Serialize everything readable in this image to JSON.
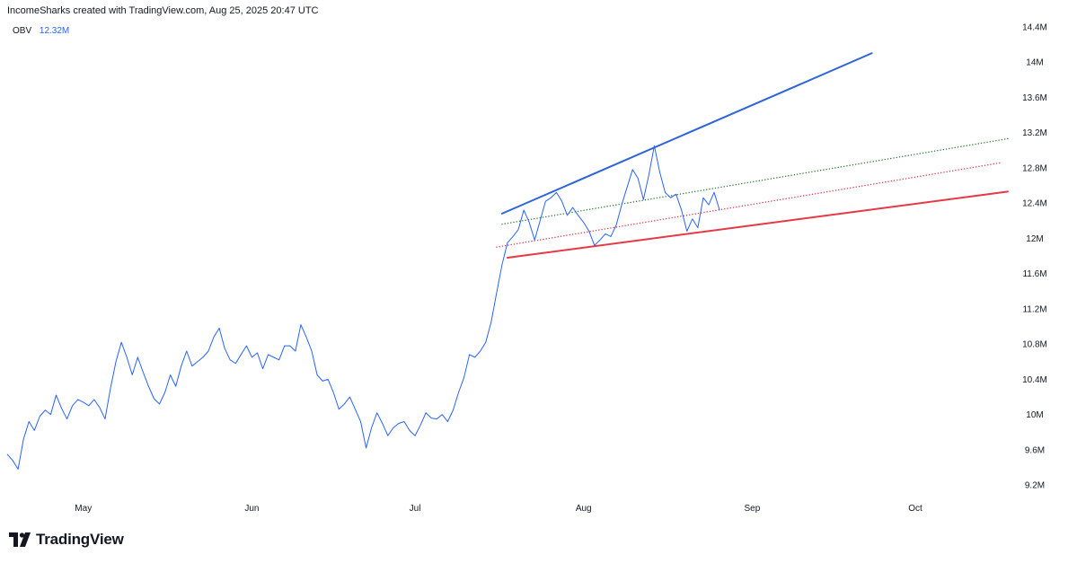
{
  "header": {
    "text": "IncomeSharks created with TradingView.com, Aug 25, 2025 20:47 UTC"
  },
  "legend": {
    "name": "OBV",
    "value": "12.32M"
  },
  "brand": {
    "name": "TradingView",
    "logo_icon": "tradingview-logo-icon"
  },
  "chart_data": {
    "type": "line",
    "title": "",
    "y_axis": {
      "side": "right",
      "min": 9.1,
      "max": 14.5,
      "ticks": [
        {
          "value": 9.2,
          "label": "9.2M"
        },
        {
          "value": 9.6,
          "label": "9.6M"
        },
        {
          "value": 10.0,
          "label": "10M"
        },
        {
          "value": 10.4,
          "label": "10.4M"
        },
        {
          "value": 10.8,
          "label": "10.8M"
        },
        {
          "value": 11.2,
          "label": "11.2M"
        },
        {
          "value": 11.6,
          "label": "11.6M"
        },
        {
          "value": 12.0,
          "label": "12M"
        },
        {
          "value": 12.4,
          "label": "12.4M"
        },
        {
          "value": 12.8,
          "label": "12.8M"
        },
        {
          "value": 13.2,
          "label": "13.2M"
        },
        {
          "value": 13.6,
          "label": "13.6M"
        },
        {
          "value": 14.0,
          "label": "14M"
        },
        {
          "value": 14.4,
          "label": "14.4M"
        }
      ]
    },
    "x_axis": {
      "start": "2025-04-17",
      "end": "2025-10-19",
      "ticks": [
        {
          "date": "2025-05-01",
          "label": "May"
        },
        {
          "date": "2025-06-01",
          "label": "Jun"
        },
        {
          "date": "2025-07-01",
          "label": "Jul"
        },
        {
          "date": "2025-08-01",
          "label": "Aug"
        },
        {
          "date": "2025-09-01",
          "label": "Sep"
        },
        {
          "date": "2025-10-01",
          "label": "Oct"
        }
      ]
    },
    "grid": false,
    "series": [
      {
        "name": "OBV",
        "color": "#2962ff",
        "points": [
          [
            "2025-04-17",
            9.55
          ],
          [
            "2025-04-18",
            9.48
          ],
          [
            "2025-04-19",
            9.38
          ],
          [
            "2025-04-20",
            9.72
          ],
          [
            "2025-04-21",
            9.92
          ],
          [
            "2025-04-22",
            9.82
          ],
          [
            "2025-04-23",
            9.98
          ],
          [
            "2025-04-24",
            10.05
          ],
          [
            "2025-04-25",
            10.0
          ],
          [
            "2025-04-26",
            10.22
          ],
          [
            "2025-04-27",
            10.07
          ],
          [
            "2025-04-28",
            9.95
          ],
          [
            "2025-04-29",
            10.1
          ],
          [
            "2025-04-30",
            10.17
          ],
          [
            "2025-05-01",
            10.14
          ],
          [
            "2025-05-02",
            10.1
          ],
          [
            "2025-05-03",
            10.17
          ],
          [
            "2025-05-04",
            10.08
          ],
          [
            "2025-05-05",
            9.95
          ],
          [
            "2025-05-06",
            10.3
          ],
          [
            "2025-05-07",
            10.6
          ],
          [
            "2025-05-08",
            10.82
          ],
          [
            "2025-05-09",
            10.65
          ],
          [
            "2025-05-10",
            10.45
          ],
          [
            "2025-05-11",
            10.65
          ],
          [
            "2025-05-12",
            10.48
          ],
          [
            "2025-05-13",
            10.32
          ],
          [
            "2025-05-14",
            10.18
          ],
          [
            "2025-05-15",
            10.12
          ],
          [
            "2025-05-16",
            10.25
          ],
          [
            "2025-05-17",
            10.45
          ],
          [
            "2025-05-18",
            10.32
          ],
          [
            "2025-05-19",
            10.55
          ],
          [
            "2025-05-20",
            10.72
          ],
          [
            "2025-05-21",
            10.55
          ],
          [
            "2025-05-22",
            10.6
          ],
          [
            "2025-05-23",
            10.65
          ],
          [
            "2025-05-24",
            10.72
          ],
          [
            "2025-05-25",
            10.88
          ],
          [
            "2025-05-26",
            10.98
          ],
          [
            "2025-05-27",
            10.75
          ],
          [
            "2025-05-28",
            10.62
          ],
          [
            "2025-05-29",
            10.58
          ],
          [
            "2025-05-30",
            10.68
          ],
          [
            "2025-05-31",
            10.78
          ],
          [
            "2025-06-01",
            10.65
          ],
          [
            "2025-06-02",
            10.7
          ],
          [
            "2025-06-03",
            10.52
          ],
          [
            "2025-06-04",
            10.68
          ],
          [
            "2025-06-05",
            10.65
          ],
          [
            "2025-06-06",
            10.62
          ],
          [
            "2025-06-07",
            10.78
          ],
          [
            "2025-06-08",
            10.78
          ],
          [
            "2025-06-09",
            10.72
          ],
          [
            "2025-06-10",
            11.02
          ],
          [
            "2025-06-11",
            10.88
          ],
          [
            "2025-06-12",
            10.72
          ],
          [
            "2025-06-13",
            10.45
          ],
          [
            "2025-06-14",
            10.38
          ],
          [
            "2025-06-15",
            10.4
          ],
          [
            "2025-06-16",
            10.25
          ],
          [
            "2025-06-17",
            10.06
          ],
          [
            "2025-06-18",
            10.12
          ],
          [
            "2025-06-19",
            10.2
          ],
          [
            "2025-06-20",
            10.06
          ],
          [
            "2025-06-21",
            9.92
          ],
          [
            "2025-06-22",
            9.62
          ],
          [
            "2025-06-23",
            9.85
          ],
          [
            "2025-06-24",
            10.02
          ],
          [
            "2025-06-25",
            9.9
          ],
          [
            "2025-06-26",
            9.76
          ],
          [
            "2025-06-27",
            9.85
          ],
          [
            "2025-06-28",
            9.9
          ],
          [
            "2025-06-29",
            9.92
          ],
          [
            "2025-06-30",
            9.82
          ],
          [
            "2025-07-01",
            9.76
          ],
          [
            "2025-07-02",
            9.88
          ],
          [
            "2025-07-03",
            10.02
          ],
          [
            "2025-07-04",
            9.96
          ],
          [
            "2025-07-05",
            9.95
          ],
          [
            "2025-07-06",
            10.0
          ],
          [
            "2025-07-07",
            9.92
          ],
          [
            "2025-07-08",
            10.05
          ],
          [
            "2025-07-09",
            10.25
          ],
          [
            "2025-07-10",
            10.42
          ],
          [
            "2025-07-11",
            10.68
          ],
          [
            "2025-07-12",
            10.65
          ],
          [
            "2025-07-13",
            10.72
          ],
          [
            "2025-07-14",
            10.82
          ],
          [
            "2025-07-15",
            11.05
          ],
          [
            "2025-07-16",
            11.38
          ],
          [
            "2025-07-17",
            11.7
          ],
          [
            "2025-07-18",
            11.95
          ],
          [
            "2025-07-19",
            12.02
          ],
          [
            "2025-07-20",
            12.1
          ],
          [
            "2025-07-21",
            12.32
          ],
          [
            "2025-07-22",
            12.18
          ],
          [
            "2025-07-23",
            11.98
          ],
          [
            "2025-07-24",
            12.2
          ],
          [
            "2025-07-25",
            12.42
          ],
          [
            "2025-07-26",
            12.46
          ],
          [
            "2025-07-27",
            12.52
          ],
          [
            "2025-07-28",
            12.42
          ],
          [
            "2025-07-29",
            12.26
          ],
          [
            "2025-07-30",
            12.35
          ],
          [
            "2025-07-31",
            12.26
          ],
          [
            "2025-08-01",
            12.18
          ],
          [
            "2025-08-02",
            12.08
          ],
          [
            "2025-08-03",
            11.92
          ],
          [
            "2025-08-04",
            11.98
          ],
          [
            "2025-08-05",
            12.05
          ],
          [
            "2025-08-06",
            12.02
          ],
          [
            "2025-08-07",
            12.15
          ],
          [
            "2025-08-08",
            12.38
          ],
          [
            "2025-08-09",
            12.58
          ],
          [
            "2025-08-10",
            12.78
          ],
          [
            "2025-08-11",
            12.68
          ],
          [
            "2025-08-12",
            12.44
          ],
          [
            "2025-08-13",
            12.72
          ],
          [
            "2025-08-14",
            13.05
          ],
          [
            "2025-08-15",
            12.75
          ],
          [
            "2025-08-16",
            12.52
          ],
          [
            "2025-08-17",
            12.46
          ],
          [
            "2025-08-18",
            12.5
          ],
          [
            "2025-08-19",
            12.32
          ],
          [
            "2025-08-20",
            12.08
          ],
          [
            "2025-08-21",
            12.22
          ],
          [
            "2025-08-22",
            12.12
          ],
          [
            "2025-08-23",
            12.46
          ],
          [
            "2025-08-24",
            12.38
          ],
          [
            "2025-08-25",
            12.52
          ],
          [
            "2025-08-26",
            12.32
          ]
        ]
      }
    ],
    "annotations": [
      {
        "kind": "trendline",
        "style": "solid",
        "color": "#2d64d8",
        "from": [
          "2025-07-17",
          12.28
        ],
        "to": [
          "2025-09-23",
          14.1
        ]
      },
      {
        "kind": "trendline",
        "style": "solid",
        "color": "#e53945",
        "from": [
          "2025-07-18",
          11.78
        ],
        "to": [
          "2025-10-18",
          12.53
        ]
      },
      {
        "kind": "trendline",
        "style": "dotted",
        "color": "#2e7d32",
        "from": [
          "2025-07-17",
          12.16
        ],
        "to": [
          "2025-10-18",
          13.13
        ]
      },
      {
        "kind": "trendline",
        "style": "dotted",
        "color": "#e53945",
        "from": [
          "2025-07-16",
          11.9
        ],
        "to": [
          "2025-10-17",
          12.86
        ]
      }
    ]
  }
}
